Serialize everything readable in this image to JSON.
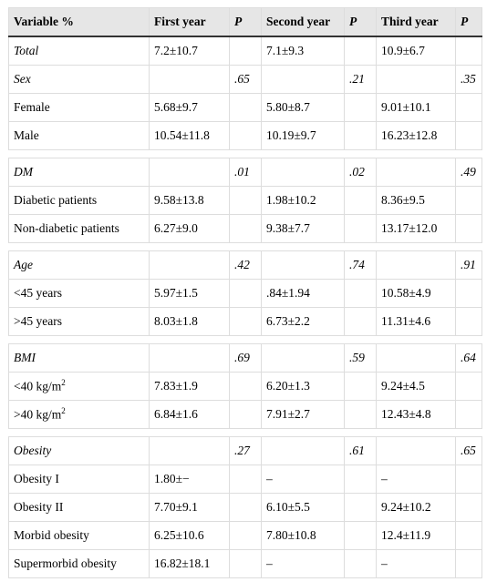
{
  "header": {
    "variable": "Variable %",
    "first_year": "First year",
    "p1": "P",
    "second_year": "Second year",
    "p2": "P",
    "third_year": "Third year",
    "p3": "P"
  },
  "rows": {
    "total": {
      "label": "Total",
      "y1": "7.2±10.7",
      "y2": "7.1±9.3",
      "y3": "10.9±6.7"
    },
    "sex": {
      "label": "Sex",
      "p1": ".65",
      "p2": ".21",
      "p3": ".35"
    },
    "female": {
      "label": "Female",
      "y1": "5.68±9.7",
      "y2": "5.80±8.7",
      "y3": "9.01±10.1"
    },
    "male": {
      "label": "Male",
      "y1": "10.54±11.8",
      "y2": "10.19±9.7",
      "y3": "16.23±12.8"
    },
    "dm": {
      "label": "DM",
      "p1": ".01",
      "p2": ".02",
      "p3": ".49"
    },
    "diabetic": {
      "label": "Diabetic patients",
      "y1": "9.58±13.8",
      "y2": "1.98±10.2",
      "y3": "8.36±9.5"
    },
    "nondiabetic": {
      "label": "Non-diabetic patients",
      "y1": "6.27±9.0",
      "y2": "9.38±7.7",
      "y3": "13.17±12.0"
    },
    "age": {
      "label": "Age",
      "p1": ".42",
      "p2": ".74",
      "p3": ".91"
    },
    "under45": {
      "label": "<45 years",
      "y1": "5.97±1.5",
      "y2": ".84±1.94",
      "y3": "10.58±4.9"
    },
    "over45": {
      "label": ">45 years",
      "y1": "8.03±1.8",
      "y2": "6.73±2.2",
      "y3": "11.31±4.6"
    },
    "bmi": {
      "label": "BMI",
      "p1": ".69",
      "p2": ".59",
      "p3": ".64"
    },
    "bmi_under40": {
      "label": "<40 kg/m",
      "sup": "2",
      "y1": "7.83±1.9",
      "y2": "6.20±1.3",
      "y3": "9.24±4.5"
    },
    "bmi_over40": {
      "label": ">40 kg/m",
      "sup": "2",
      "y1": "6.84±1.6",
      "y2": "7.91±2.7",
      "y3": "12.43±4.8"
    },
    "obesity": {
      "label": "Obesity",
      "p1": ".27",
      "p2": ".61",
      "p3": ".65"
    },
    "obesity1": {
      "label": "Obesity I",
      "y1": "1.80±−",
      "y2": "–",
      "y3": "–"
    },
    "obesity2": {
      "label": "Obesity II",
      "y1": "7.70±9.1",
      "y2": "6.10±5.5",
      "y3": "9.24±10.2"
    },
    "morbid": {
      "label": "Morbid obesity",
      "y1": "6.25±10.6",
      "y2": "7.80±10.8",
      "y3": "12.4±11.9"
    },
    "supermorbid": {
      "label": "Supermorbid obesity",
      "y1": "16.82±18.1",
      "y2": "–",
      "y3": "–"
    }
  }
}
